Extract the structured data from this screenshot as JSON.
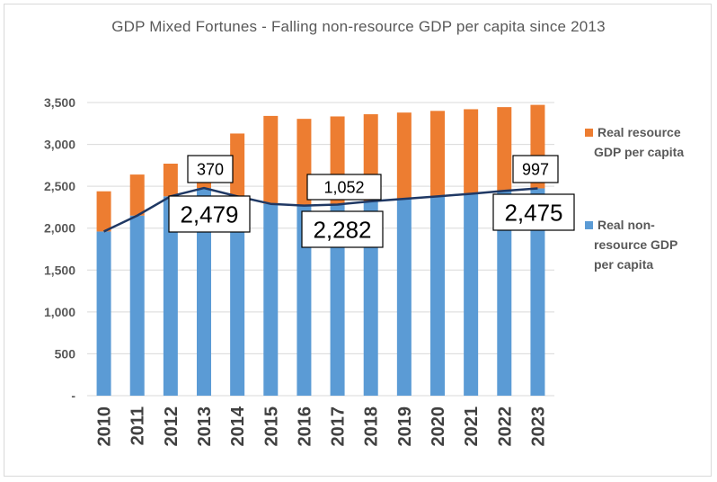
{
  "chart_data": {
    "type": "bar",
    "stacked": true,
    "title": "GDP Mixed Fortunes - Falling non-resource GDP per capita since 2013",
    "categories": [
      "2010",
      "2011",
      "2012",
      "2013",
      "2014",
      "2015",
      "2016",
      "2017",
      "2018",
      "2019",
      "2020",
      "2021",
      "2022",
      "2023"
    ],
    "series": [
      {
        "name": "Real non-resource GDP per capita",
        "kind": "bar",
        "color": "#5b9bd5",
        "values": [
          1960,
          2150,
          2380,
          2479,
          2380,
          2290,
          2270,
          2282,
          2320,
          2350,
          2380,
          2410,
          2445,
          2475
        ]
      },
      {
        "name": "Real resource GDP per capita",
        "kind": "bar",
        "color": "#ed7d31",
        "values": [
          480,
          490,
          390,
          370,
          750,
          1050,
          1035,
          1052,
          1040,
          1030,
          1020,
          1010,
          1000,
          997
        ]
      },
      {
        "name": "Real non-resource GDP per capita (line)",
        "kind": "line",
        "color": "#1f3864",
        "values": [
          1960,
          2150,
          2380,
          2479,
          2380,
          2290,
          2270,
          2282,
          2320,
          2350,
          2380,
          2410,
          2445,
          2475
        ]
      }
    ],
    "ylim": [
      0,
      3500
    ],
    "yticks": [
      0,
      500,
      1000,
      1500,
      2000,
      2500,
      3000,
      3500
    ],
    "ytick_labels": [
      "-",
      "500",
      "1,000",
      "1,500",
      "2,000",
      "2,500",
      "3,000",
      "3,500"
    ],
    "grid": true,
    "legend_position": "right",
    "legend": [
      {
        "label_lines": [
          "Real resource",
          "GDP per capita"
        ],
        "color": "#ed7d31"
      },
      {
        "label_lines": [
          "Real non-",
          "resource GDP",
          "per capita"
        ],
        "color": "#5b9bd5"
      }
    ],
    "annotations": [
      {
        "text": "370",
        "category": "2013",
        "size": "small"
      },
      {
        "text": "2,479",
        "category": "2013",
        "size": "large"
      },
      {
        "text": "1,052",
        "category": "2017",
        "size": "small"
      },
      {
        "text": "2,282",
        "category": "2017",
        "size": "large"
      },
      {
        "text": "997",
        "category": "2023",
        "size": "small"
      },
      {
        "text": "2,475",
        "category": "2023",
        "size": "large"
      }
    ]
  }
}
